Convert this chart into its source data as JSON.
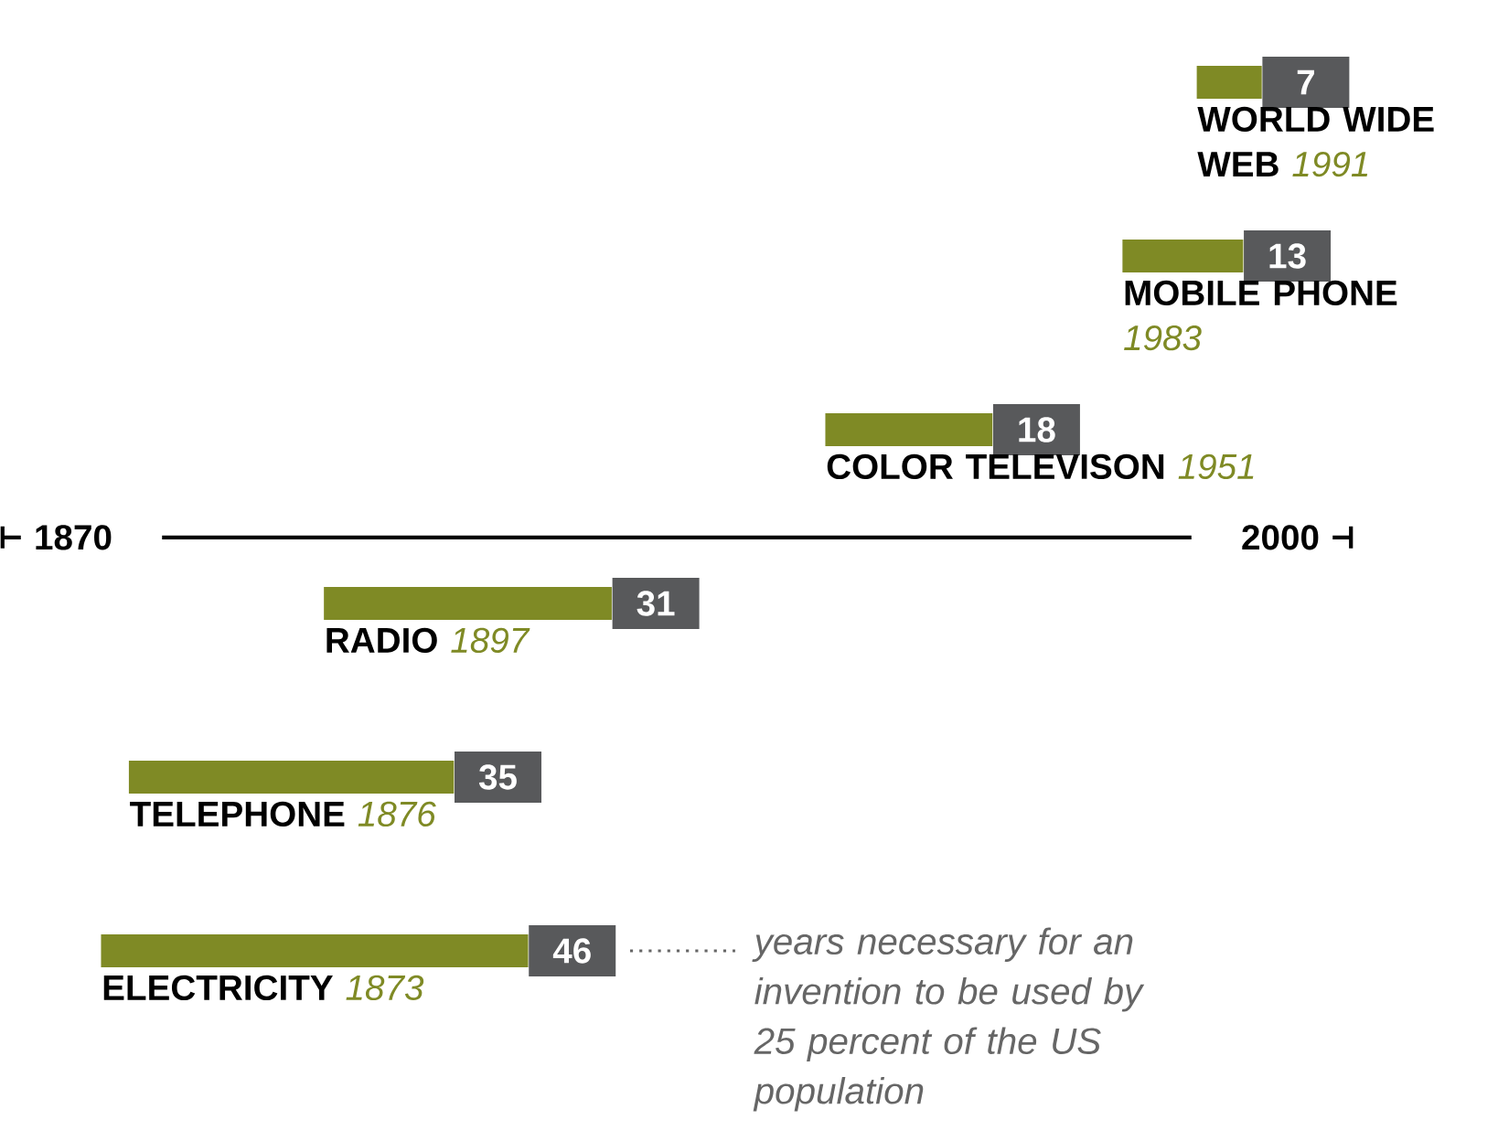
{
  "chart_data": {
    "type": "bar",
    "orientation": "horizontal",
    "categories": [
      "WORLD WIDE WEB",
      "MOBILE PHONE",
      "COLOR TELEVISON",
      "RADIO",
      "TELEPHONE",
      "ELECTRICITY"
    ],
    "values": [
      7,
      13,
      18,
      31,
      35,
      46
    ],
    "base": [
      1991,
      1983,
      1951,
      1897,
      1876,
      1873
    ],
    "color": "#7f8a25",
    "xlim": [
      1870,
      2000
    ],
    "xticks": [
      1870,
      2000
    ],
    "data_labels": true,
    "annotations": [
      "1991",
      "1983",
      "1951",
      "1897",
      "1876",
      "1873",
      "years necessary for an invention to be used by 25 percent of the US population"
    ]
  }
}
